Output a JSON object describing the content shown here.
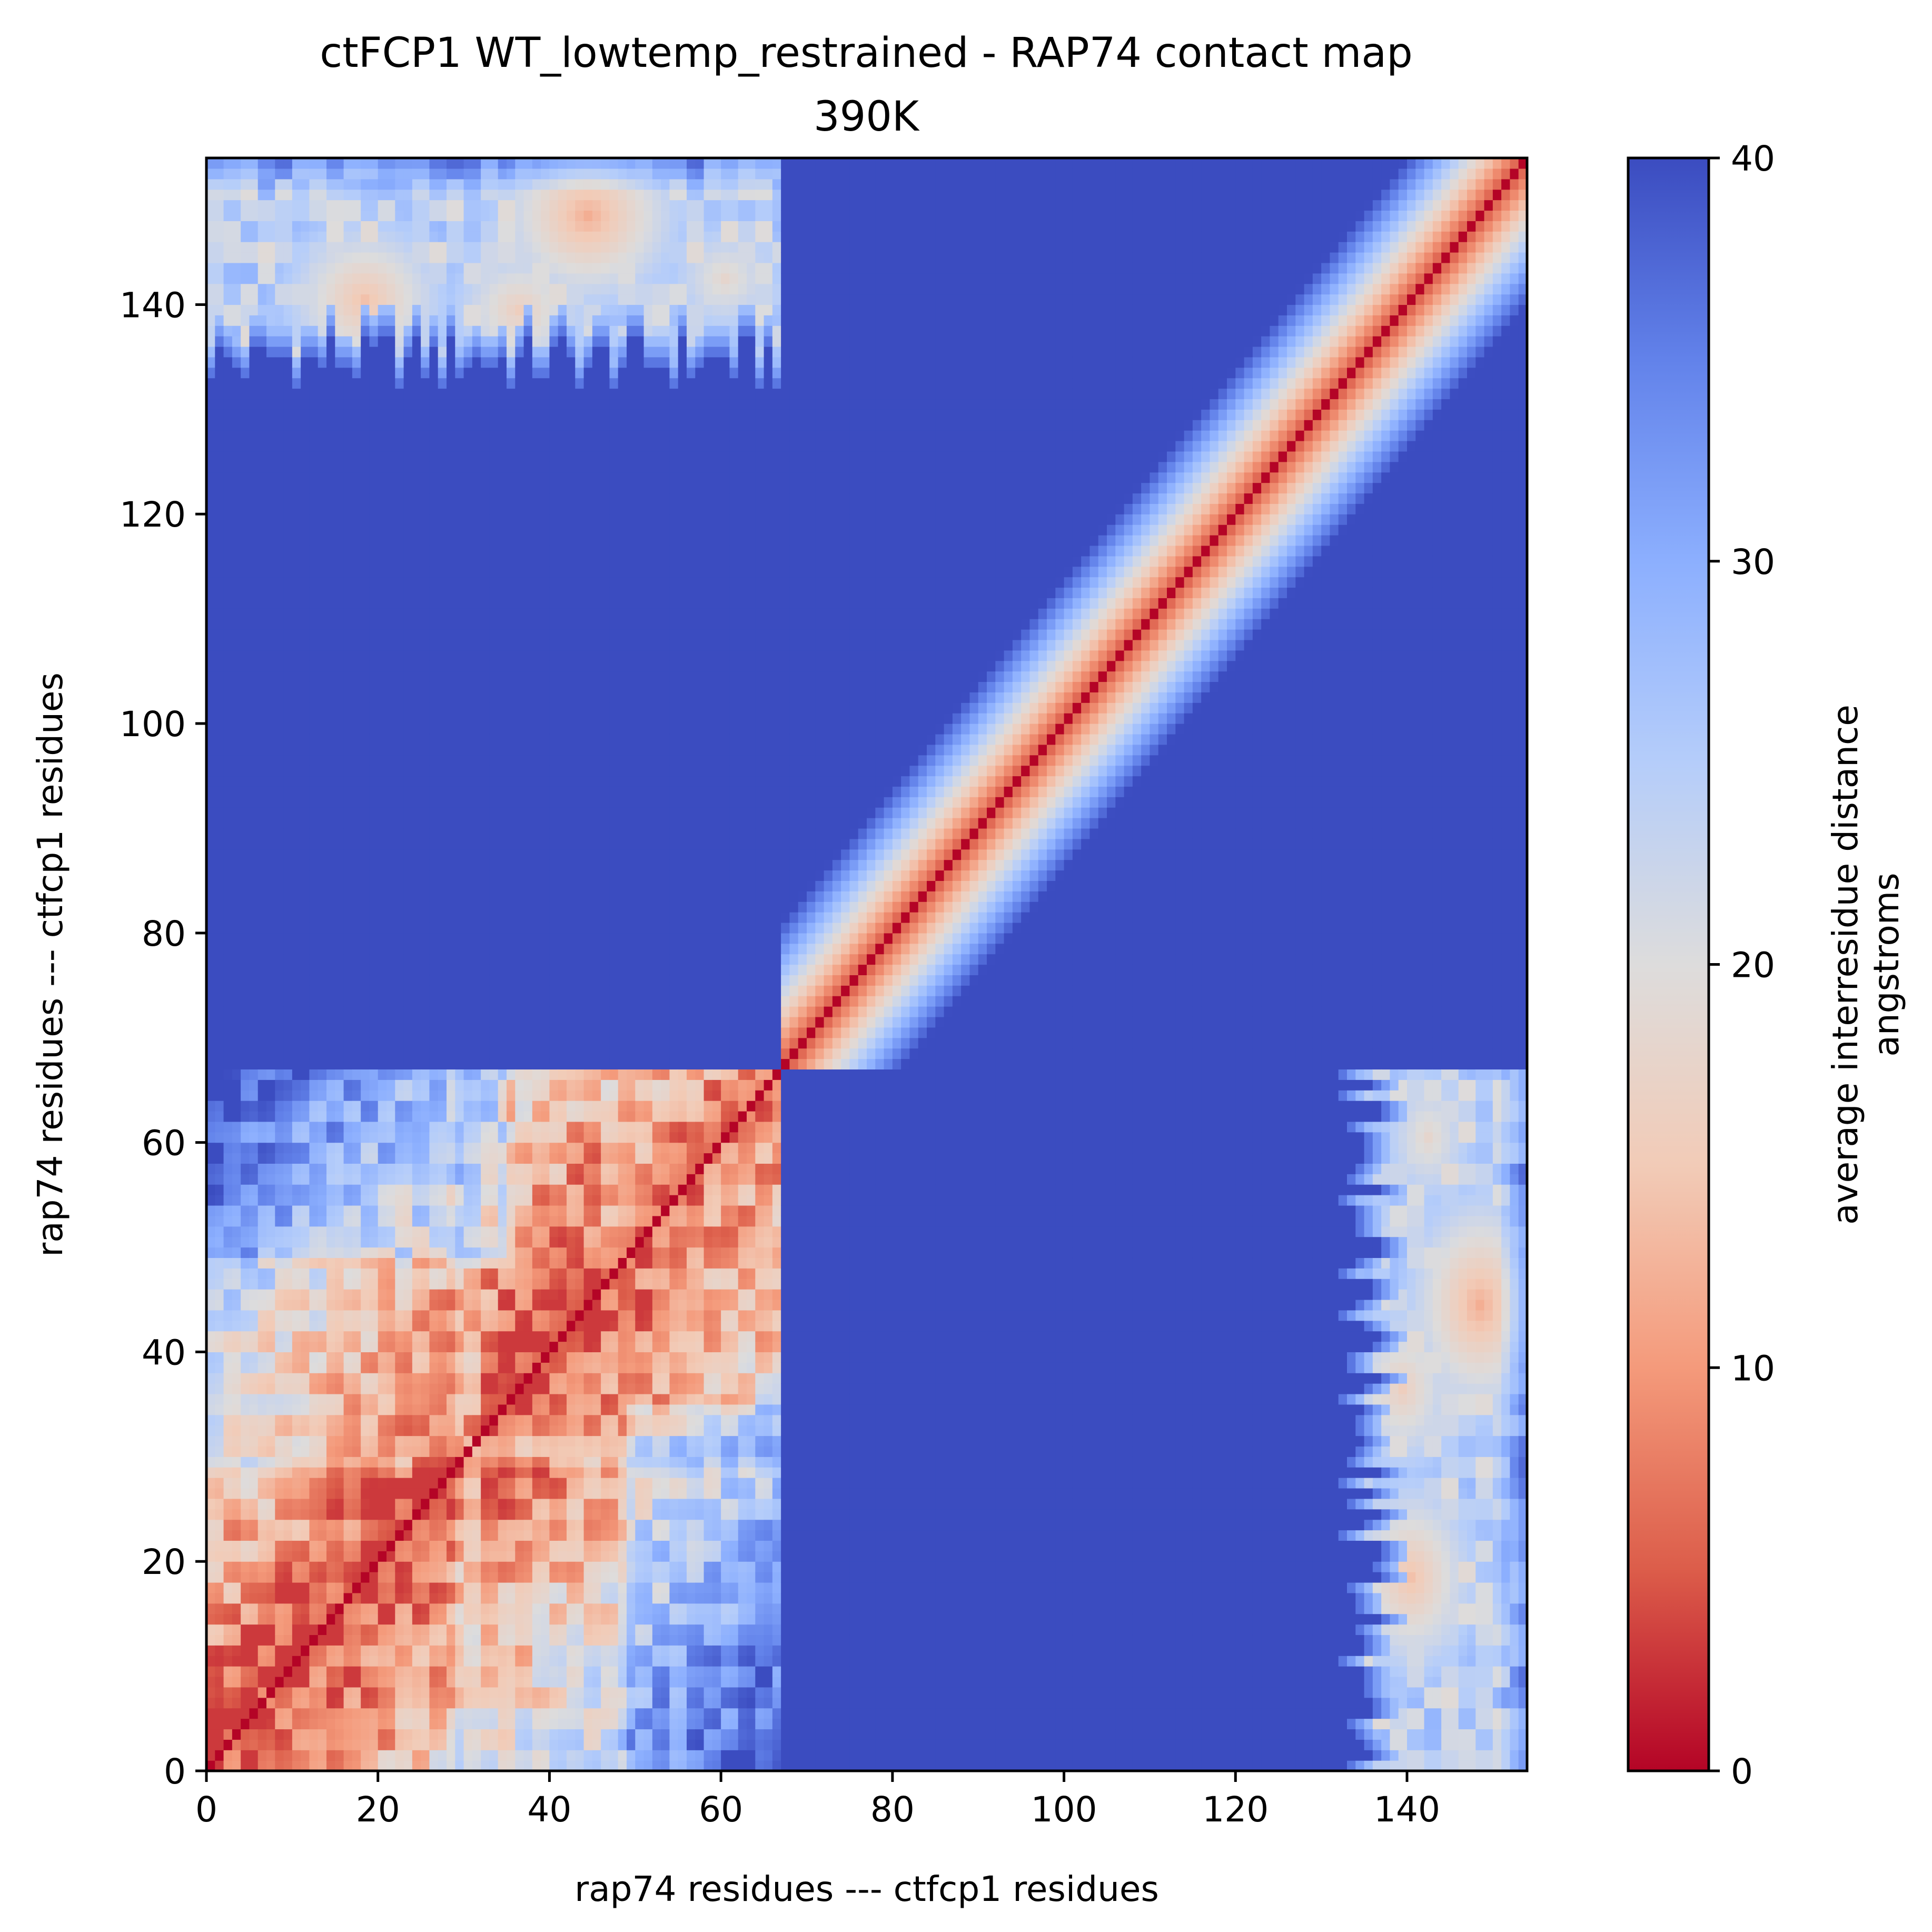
{
  "chart_data": {
    "type": "heatmap",
    "title": "ctFCP1 WT_lowtemp_restrained - RAP74 contact map",
    "subtitle": "390K",
    "xlabel": "rap74 residues --- ctfcp1 residues",
    "ylabel": "rap74 residues --- ctfcp1 residues",
    "colorbar_label": "average interresidue distance",
    "colorbar_unit": "angstroms",
    "colormap": "coolwarm_r",
    "colormap_stops": [
      "#b40426",
      "#dc5d4a",
      "#f49a7b",
      "#f2cbb7",
      "#dddcdc",
      "#b5cdfa",
      "#8caffe",
      "#6282ea",
      "#3b4cc0"
    ],
    "xlim": [
      0,
      154
    ],
    "ylim": [
      0,
      154
    ],
    "vlim": [
      0,
      40
    ],
    "xticks": [
      0,
      20,
      40,
      60,
      80,
      100,
      120,
      140
    ],
    "yticks": [
      0,
      20,
      40,
      60,
      80,
      100,
      120,
      140
    ],
    "cticks": [
      0,
      10,
      20,
      30,
      40
    ],
    "n_residues": 154,
    "segment_boundary": 67,
    "segments": [
      {
        "name": "rap74 residues",
        "start": 0,
        "end": 67
      },
      {
        "name": "ctfcp1 residues",
        "start": 67,
        "end": 154
      }
    ],
    "diagonal_value": 0,
    "empty_value": 40,
    "rap74_intra_block": {
      "range": [
        0,
        67
      ],
      "distance_model": "min(40, 4 + 0.35*|i-j|) with blocky fluctuations",
      "typical_far_range": [
        18,
        32
      ]
    },
    "ctfcp1_intra_block": {
      "range": [
        67,
        154
      ],
      "distance_model": "min(40, 3.5 + 2.5*|i-j|)",
      "band_halfwidth_residues": 12
    },
    "inter_block_contacts": {
      "rap74_range": [
        0,
        67
      ],
      "ctfcp1_range": [
        132,
        154
      ],
      "edge_start_ctfcp1": [
        132,
        137
      ],
      "hotspots": [
        {
          "rap74": 44,
          "ctfcp1": 148,
          "distance": 12
        },
        {
          "rap74": 18,
          "ctfcp1": 140,
          "distance": 14
        },
        {
          "rap74": 36,
          "ctfcp1": 139,
          "distance": 16
        },
        {
          "rap74": 60,
          "ctfcp1": 142,
          "distance": 18
        }
      ],
      "background_distance": [
        24,
        32
      ]
    }
  }
}
